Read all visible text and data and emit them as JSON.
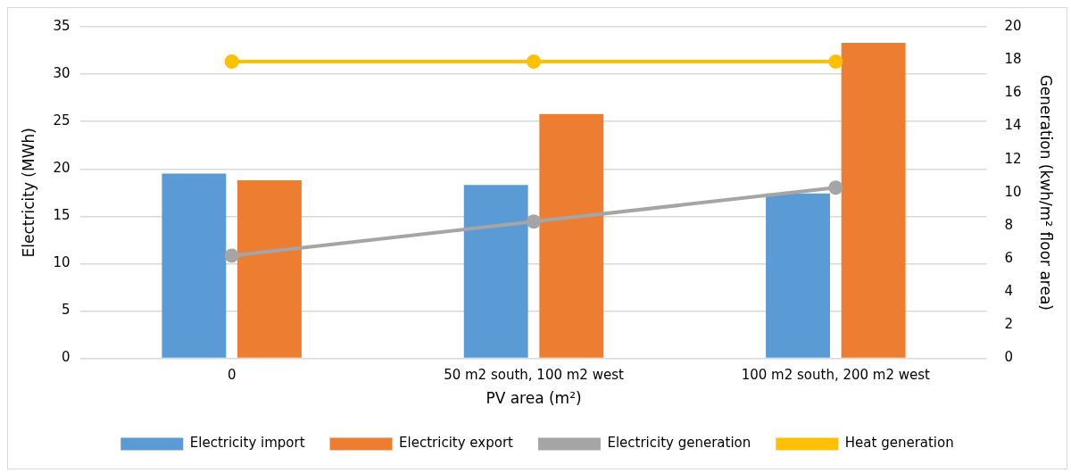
{
  "chart_data": {
    "type": "bar",
    "categories": [
      "0",
      "50 m2 south, 100 m2 west",
      "100 m2 south, 200 m2 west"
    ],
    "xlabel": "PV area (m²)",
    "ylabel": "Electricity (MWh)",
    "y2label": "Generation (kwh/m² floor area)",
    "series": [
      {
        "name": "Electricity import",
        "color": "#5b9bd5",
        "values": [
          19.5,
          18.3,
          17.4
        ]
      },
      {
        "name": "Electricity export",
        "color": "#ed7d31",
        "values": [
          18.8,
          25.8,
          33.3
        ]
      },
      {
        "name": "Electricity generation",
        "type": "line",
        "axis": "y2",
        "color": "#a5a5a5",
        "values": [
          6.2,
          8.25,
          10.3
        ]
      },
      {
        "name": "Heat generation",
        "type": "line",
        "axis": "y2",
        "color": "#ffc000",
        "values": [
          17.9,
          17.9,
          17.9
        ]
      }
    ],
    "ylim": [
      0,
      35
    ],
    "yticks": [
      0,
      5,
      10,
      15,
      20,
      25,
      30,
      35
    ],
    "y2lim": [
      0,
      20
    ],
    "y2ticks": [
      0,
      2,
      4,
      6,
      8,
      10,
      12,
      14,
      16,
      18,
      20
    ],
    "grid": "y",
    "legend": "bottom",
    "marker": "circle",
    "line_style": "solid"
  }
}
